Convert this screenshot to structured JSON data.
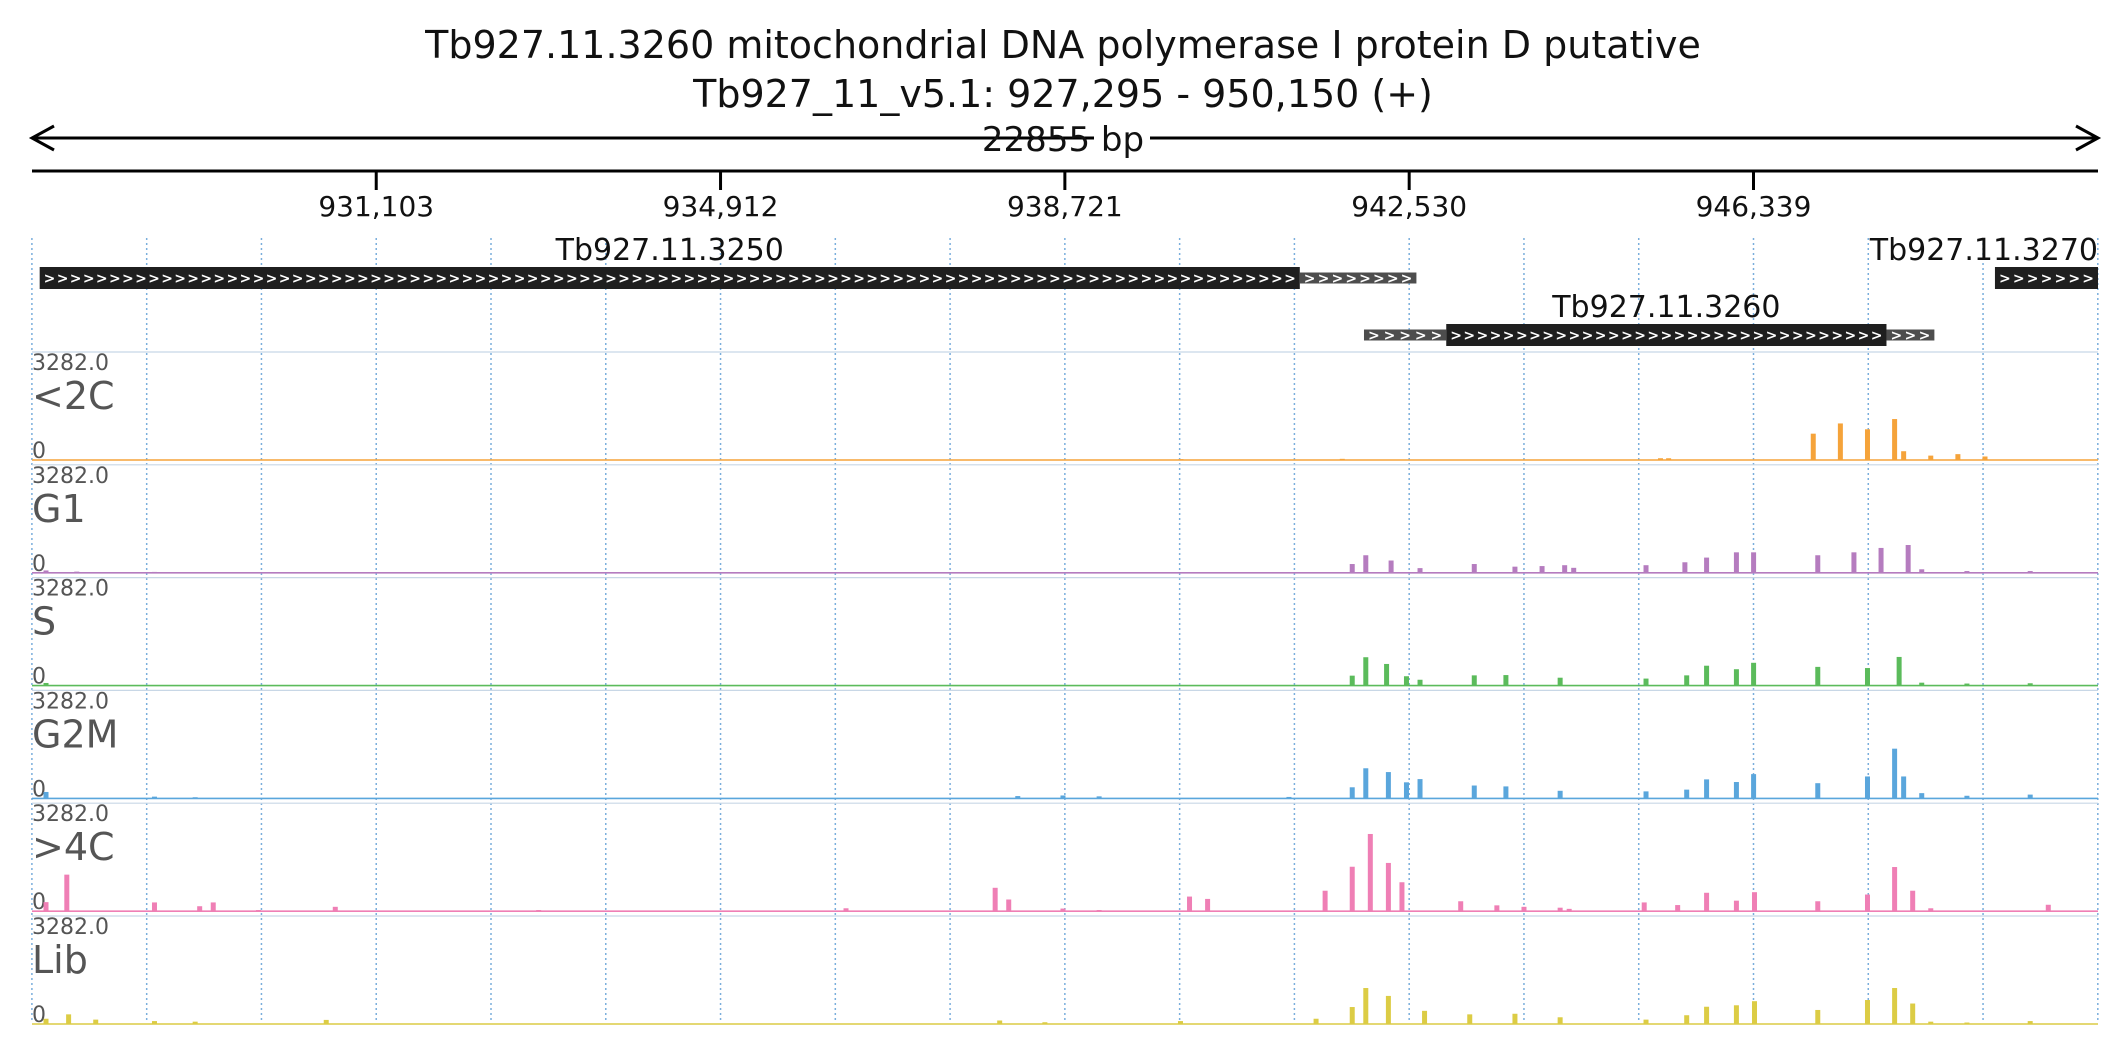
{
  "header": {
    "title": "Tb927.11.3260  mitochondrial DNA polymerase I protein D  putative",
    "location": "Tb927_11_v5.1: 927,295 - 950,150 (+)",
    "span_label": "22855 bp"
  },
  "region": {
    "start": 927295,
    "end": 950150
  },
  "ruler": {
    "ticks": [
      {
        "pos": 931103,
        "label": "931,103"
      },
      {
        "pos": 934912,
        "label": "934,912"
      },
      {
        "pos": 938721,
        "label": "938,721"
      },
      {
        "pos": 942530,
        "label": "942,530"
      },
      {
        "pos": 946339,
        "label": "946,339"
      }
    ]
  },
  "genes": [
    {
      "name": "Tb927.11.3250",
      "utr5": [
        927380,
        927380
      ],
      "cds": [
        927380,
        941320
      ],
      "utr3": [
        941320,
        942610
      ],
      "row": 0
    },
    {
      "name": "Tb927.11.3260",
      "utr5": [
        942030,
        942940
      ],
      "cds": [
        942940,
        947810
      ],
      "utr3": [
        947810,
        948340
      ],
      "row": 1
    },
    {
      "name": "Tb927.11.3270",
      "utr5": [
        949010,
        949010
      ],
      "cds": [
        949010,
        950150
      ],
      "utr3": [
        950150,
        950150
      ],
      "row": 0
    }
  ],
  "tracks": [
    {
      "name": "<2C",
      "max_label": "3282.0",
      "zero_label": "0",
      "max": 3282,
      "color": "#f5a33a"
    },
    {
      "name": "G1",
      "max_label": "3282.0",
      "zero_label": "0",
      "max": 3282,
      "color": "#b57cbf"
    },
    {
      "name": "S",
      "max_label": "3282.0",
      "zero_label": "0",
      "max": 3282,
      "color": "#5bbb5b"
    },
    {
      "name": "G2M",
      "max_label": "3282.0",
      "zero_label": "0",
      "max": 3282,
      "color": "#5aa6dc"
    },
    {
      "name": ">4C",
      "max_label": "3282.0",
      "zero_label": "0",
      "max": 3282,
      "color": "#ef7fb5"
    },
    {
      "name": "Lib",
      "max_label": "3282.0",
      "zero_label": "0",
      "max": 3282,
      "color": "#dccc45"
    }
  ],
  "chart_data": {
    "type": "area",
    "x_unit": "bp",
    "xlim": [
      927295,
      950150
    ],
    "ylim": [
      0,
      3282
    ],
    "series": [
      {
        "name": "<2C",
        "points": [
          [
            940005,
            30
          ],
          [
            941790,
            40
          ],
          [
            945310,
            60
          ],
          [
            945400,
            60
          ],
          [
            947000,
            900
          ],
          [
            947300,
            1250
          ],
          [
            947600,
            1050
          ],
          [
            947900,
            1400
          ],
          [
            948000,
            300
          ],
          [
            948300,
            150
          ],
          [
            948600,
            200
          ],
          [
            948900,
            120
          ]
        ]
      },
      {
        "name": "G1",
        "points": [
          [
            927450,
            80
          ],
          [
            927790,
            40
          ],
          [
            928650,
            30
          ],
          [
            941900,
            300
          ],
          [
            942050,
            600
          ],
          [
            942330,
            420
          ],
          [
            942650,
            160
          ],
          [
            943250,
            300
          ],
          [
            943700,
            210
          ],
          [
            944000,
            230
          ],
          [
            944250,
            260
          ],
          [
            944350,
            170
          ],
          [
            945150,
            260
          ],
          [
            945580,
            360
          ],
          [
            945820,
            520
          ],
          [
            946150,
            700
          ],
          [
            946340,
            700
          ],
          [
            947050,
            600
          ],
          [
            947450,
            700
          ],
          [
            947750,
            850
          ],
          [
            948050,
            950
          ],
          [
            948200,
            120
          ],
          [
            948700,
            60
          ],
          [
            949400,
            60
          ]
        ]
      },
      {
        "name": "S",
        "points": [
          [
            927450,
            90
          ],
          [
            941900,
            340
          ],
          [
            942050,
            970
          ],
          [
            942280,
            740
          ],
          [
            942500,
            320
          ],
          [
            942650,
            200
          ],
          [
            943250,
            350
          ],
          [
            943600,
            360
          ],
          [
            944200,
            270
          ],
          [
            945150,
            240
          ],
          [
            945600,
            350
          ],
          [
            945820,
            680
          ],
          [
            946150,
            560
          ],
          [
            946340,
            780
          ],
          [
            947050,
            640
          ],
          [
            947600,
            600
          ],
          [
            947950,
            980
          ],
          [
            948200,
            100
          ],
          [
            948700,
            70
          ],
          [
            949400,
            80
          ]
        ]
      },
      {
        "name": "G2M",
        "points": [
          [
            927450,
            220
          ],
          [
            928650,
            60
          ],
          [
            929100,
            40
          ],
          [
            938200,
            80
          ],
          [
            938700,
            100
          ],
          [
            939100,
            70
          ],
          [
            941200,
            50
          ],
          [
            941900,
            380
          ],
          [
            942050,
            1030
          ],
          [
            942300,
            900
          ],
          [
            942500,
            550
          ],
          [
            942650,
            660
          ],
          [
            943250,
            440
          ],
          [
            943600,
            410
          ],
          [
            944200,
            260
          ],
          [
            945150,
            240
          ],
          [
            945600,
            300
          ],
          [
            945820,
            650
          ],
          [
            946150,
            560
          ],
          [
            946340,
            830
          ],
          [
            947050,
            520
          ],
          [
            947600,
            750
          ],
          [
            947900,
            1700
          ],
          [
            948000,
            750
          ],
          [
            948200,
            180
          ],
          [
            948700,
            90
          ],
          [
            949400,
            130
          ]
        ]
      },
      {
        "name": ">4C",
        "points": [
          [
            927450,
            310
          ],
          [
            927680,
            1250
          ],
          [
            928650,
            300
          ],
          [
            929150,
            170
          ],
          [
            929300,
            300
          ],
          [
            929800,
            40
          ],
          [
            930650,
            150
          ],
          [
            932900,
            40
          ],
          [
            936300,
            100
          ],
          [
            937950,
            800
          ],
          [
            938100,
            400
          ],
          [
            938700,
            90
          ],
          [
            939100,
            40
          ],
          [
            940100,
            500
          ],
          [
            940300,
            420
          ],
          [
            941600,
            700
          ],
          [
            941900,
            1520
          ],
          [
            942100,
            2640
          ],
          [
            942300,
            1650
          ],
          [
            942450,
            990
          ],
          [
            943100,
            340
          ],
          [
            943500,
            200
          ],
          [
            943800,
            150
          ],
          [
            944200,
            120
          ],
          [
            944300,
            80
          ],
          [
            945130,
            300
          ],
          [
            945500,
            210
          ],
          [
            945820,
            630
          ],
          [
            946150,
            360
          ],
          [
            946350,
            650
          ],
          [
            947050,
            340
          ],
          [
            947600,
            570
          ],
          [
            947900,
            1510
          ],
          [
            948100,
            700
          ],
          [
            948300,
            100
          ],
          [
            949600,
            220
          ]
        ]
      },
      {
        "name": "Lib",
        "points": [
          [
            927450,
            180
          ],
          [
            927700,
            330
          ],
          [
            928000,
            150
          ],
          [
            928650,
            100
          ],
          [
            929100,
            80
          ],
          [
            930550,
            140
          ],
          [
            938000,
            120
          ],
          [
            938500,
            60
          ],
          [
            940000,
            100
          ],
          [
            941500,
            180
          ],
          [
            941900,
            580
          ],
          [
            942050,
            1230
          ],
          [
            942300,
            960
          ],
          [
            942700,
            450
          ],
          [
            943200,
            330
          ],
          [
            943700,
            350
          ],
          [
            944200,
            230
          ],
          [
            945150,
            150
          ],
          [
            945600,
            300
          ],
          [
            945820,
            590
          ],
          [
            946150,
            640
          ],
          [
            946350,
            780
          ],
          [
            947050,
            480
          ],
          [
            947600,
            820
          ],
          [
            947900,
            1230
          ],
          [
            948100,
            700
          ],
          [
            948300,
            80
          ],
          [
            948700,
            50
          ],
          [
            949400,
            100
          ]
        ]
      }
    ]
  }
}
